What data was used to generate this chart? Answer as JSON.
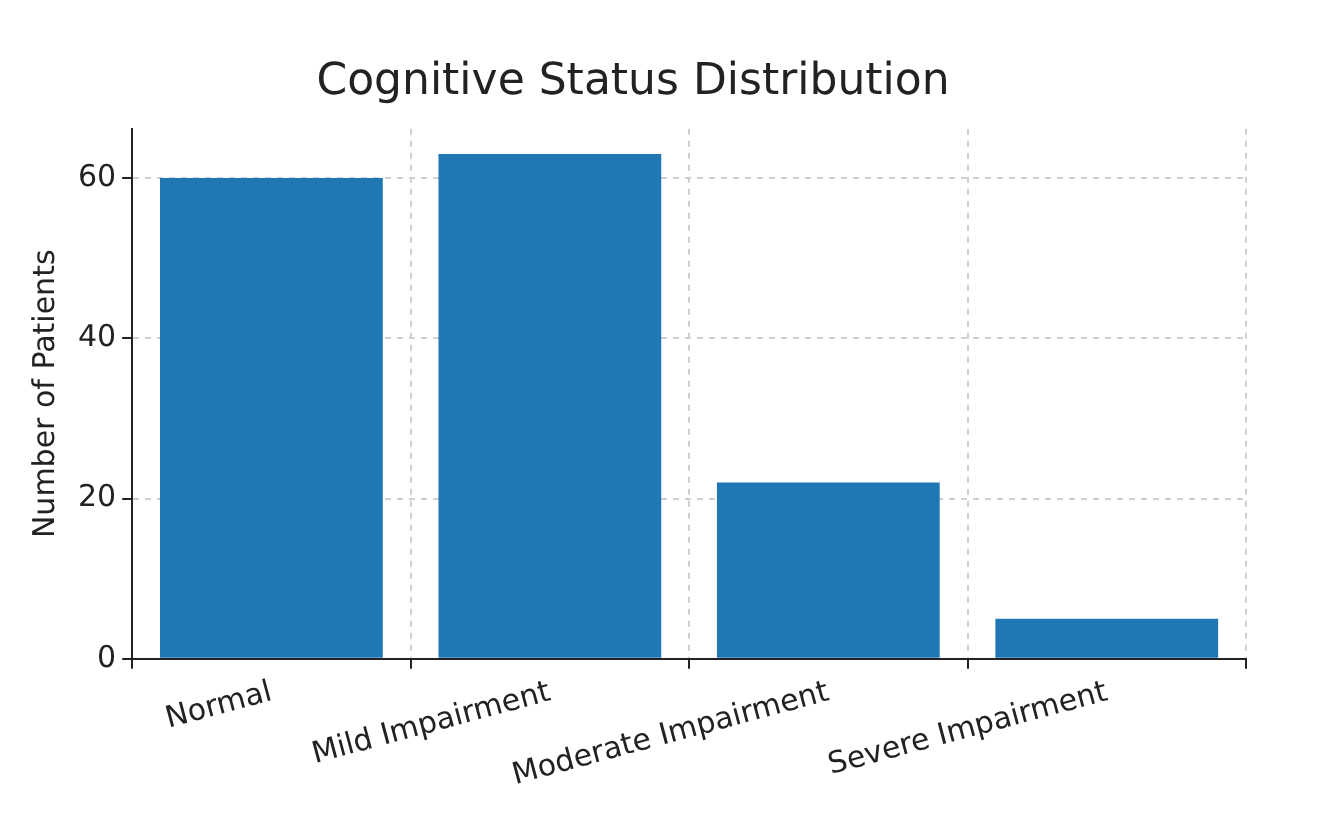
{
  "chart_data": {
    "type": "bar",
    "title": "Cognitive Status Distribution",
    "ylabel": "Number of Patients",
    "categories": [
      "Normal",
      "Mild Impairment",
      "Moderate Impairment",
      "Severe Impairment"
    ],
    "values": [
      60,
      63,
      22,
      5
    ],
    "color": "#1f77b4",
    "ylim": [
      0,
      66.15
    ],
    "yticks": [
      0,
      20,
      40,
      60
    ],
    "grid": true
  }
}
